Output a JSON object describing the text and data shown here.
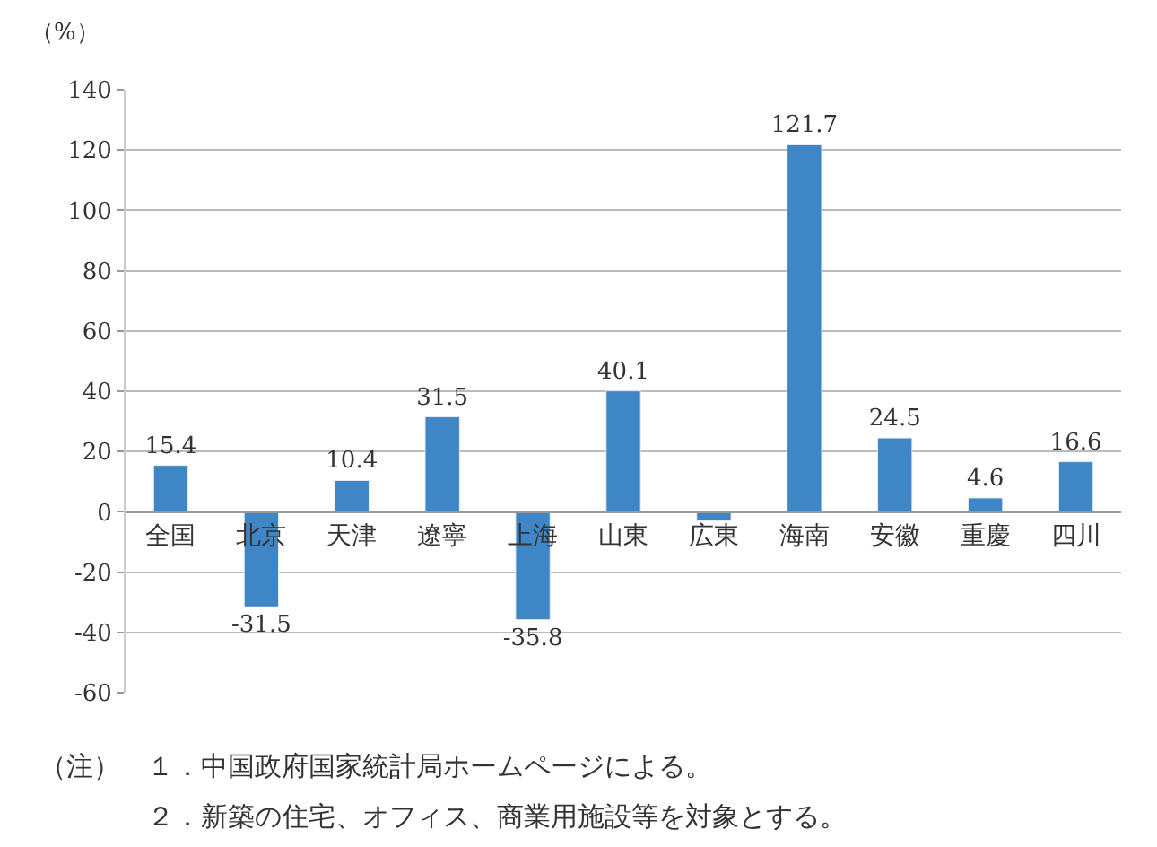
{
  "chart_data": {
    "type": "bar",
    "ylabel": "（%）",
    "categories": [
      "全国",
      "北京",
      "天津",
      "遼寧",
      "上海",
      "山東",
      "広東",
      "海南",
      "安徽",
      "重慶",
      "四川"
    ],
    "values": [
      15.4,
      -31.5,
      10.4,
      31.5,
      -35.8,
      40.1,
      -3,
      121.7,
      24.5,
      4.6,
      16.6
    ],
    "value_labels": [
      "15.4",
      "-31.5",
      "10.4",
      "31.5",
      "-35.8",
      "40.1",
      null,
      "121.7",
      "24.5",
      "4.6",
      "16.6"
    ],
    "color": "#3f86c6",
    "ylim": [
      -60,
      140
    ],
    "yticks": [
      -60,
      -40,
      -20,
      0,
      20,
      40,
      60,
      80,
      100,
      120,
      140
    ],
    "grid": "y",
    "annotations": [
      "（注）　１．中国政府国家統計局ホームページによる。",
      "　　　　２．新築の住宅、オフィス、商業用施設等を対象とする。"
    ]
  }
}
